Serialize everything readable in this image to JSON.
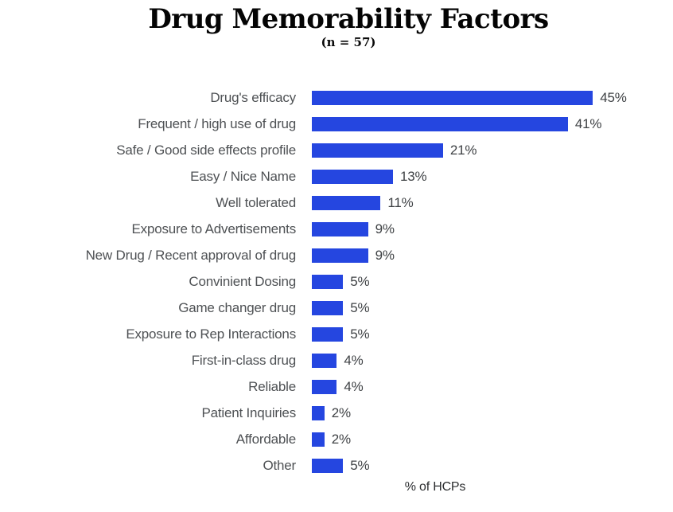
{
  "chart_data": {
    "type": "bar",
    "orientation": "horizontal",
    "title": "Drug Memorability Factors",
    "subtitle": "(n = 57)",
    "xlabel": "% of HCPs",
    "categories": [
      "Drug's efficacy",
      "Frequent / high use of drug",
      "Safe / Good side effects profile",
      "Easy / Nice Name",
      "Well tolerated",
      "Exposure to Advertisements",
      "New Drug / Recent approval of drug",
      "Convinient Dosing",
      "Game changer drug",
      "Exposure to Rep Interactions",
      "First-in-class drug",
      "Reliable",
      "Patient Inquiries",
      "Affordable",
      "Other"
    ],
    "values": [
      45,
      41,
      21,
      13,
      11,
      9,
      9,
      5,
      5,
      5,
      4,
      4,
      2,
      2,
      5
    ],
    "value_labels": [
      "45%",
      "41%",
      "21%",
      "13%",
      "11%",
      "9%",
      "9%",
      "5%",
      "5%",
      "5%",
      "4%",
      "4%",
      "2%",
      "2%",
      "5%"
    ],
    "bar_color": "#2546E0",
    "label_color": "#4e5154",
    "value_label_color": "#3f4245",
    "xlim": [
      0,
      50
    ],
    "grid": false,
    "legend": false
  }
}
